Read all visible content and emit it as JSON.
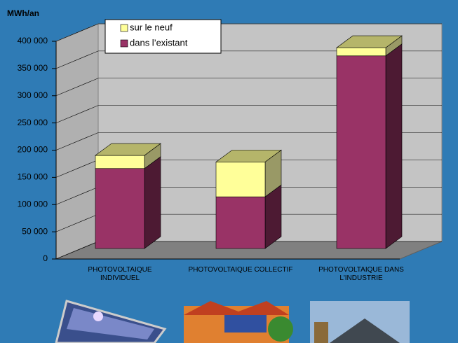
{
  "chart_data": {
    "type": "bar3d-stacked",
    "y_axis_title": "MWh/an",
    "categories": [
      "PHOTOVOLTAIQUE INDIVIDUEL",
      "PHOTOVOLTAIQUE COLLECTIF",
      "PHOTOVOLTAIQUE DANS L'INDUSTRIE"
    ],
    "series": [
      {
        "name": "dans l’existant",
        "color": "#993366",
        "values": [
          147000,
          95000,
          354000
        ]
      },
      {
        "name": "sur le neuf",
        "color": "#ffff99",
        "values": [
          24000,
          64000,
          15000
        ]
      }
    ],
    "ylim": [
      0,
      400000
    ],
    "yticks": [
      0,
      {
        "value": 50000,
        "label": "50 000"
      },
      {
        "value": 100000,
        "label": "100 000"
      },
      {
        "value": 150000,
        "label": "150 000"
      },
      {
        "value": 200000,
        "label": "200 000"
      },
      {
        "value": 250000,
        "label": "250 000"
      },
      {
        "value": 300000,
        "label": "300 000"
      },
      {
        "value": 350000,
        "label": "350 000"
      },
      {
        "value": 400000,
        "label": "400 000"
      }
    ],
    "grid": true,
    "legend": "top-left"
  }
}
